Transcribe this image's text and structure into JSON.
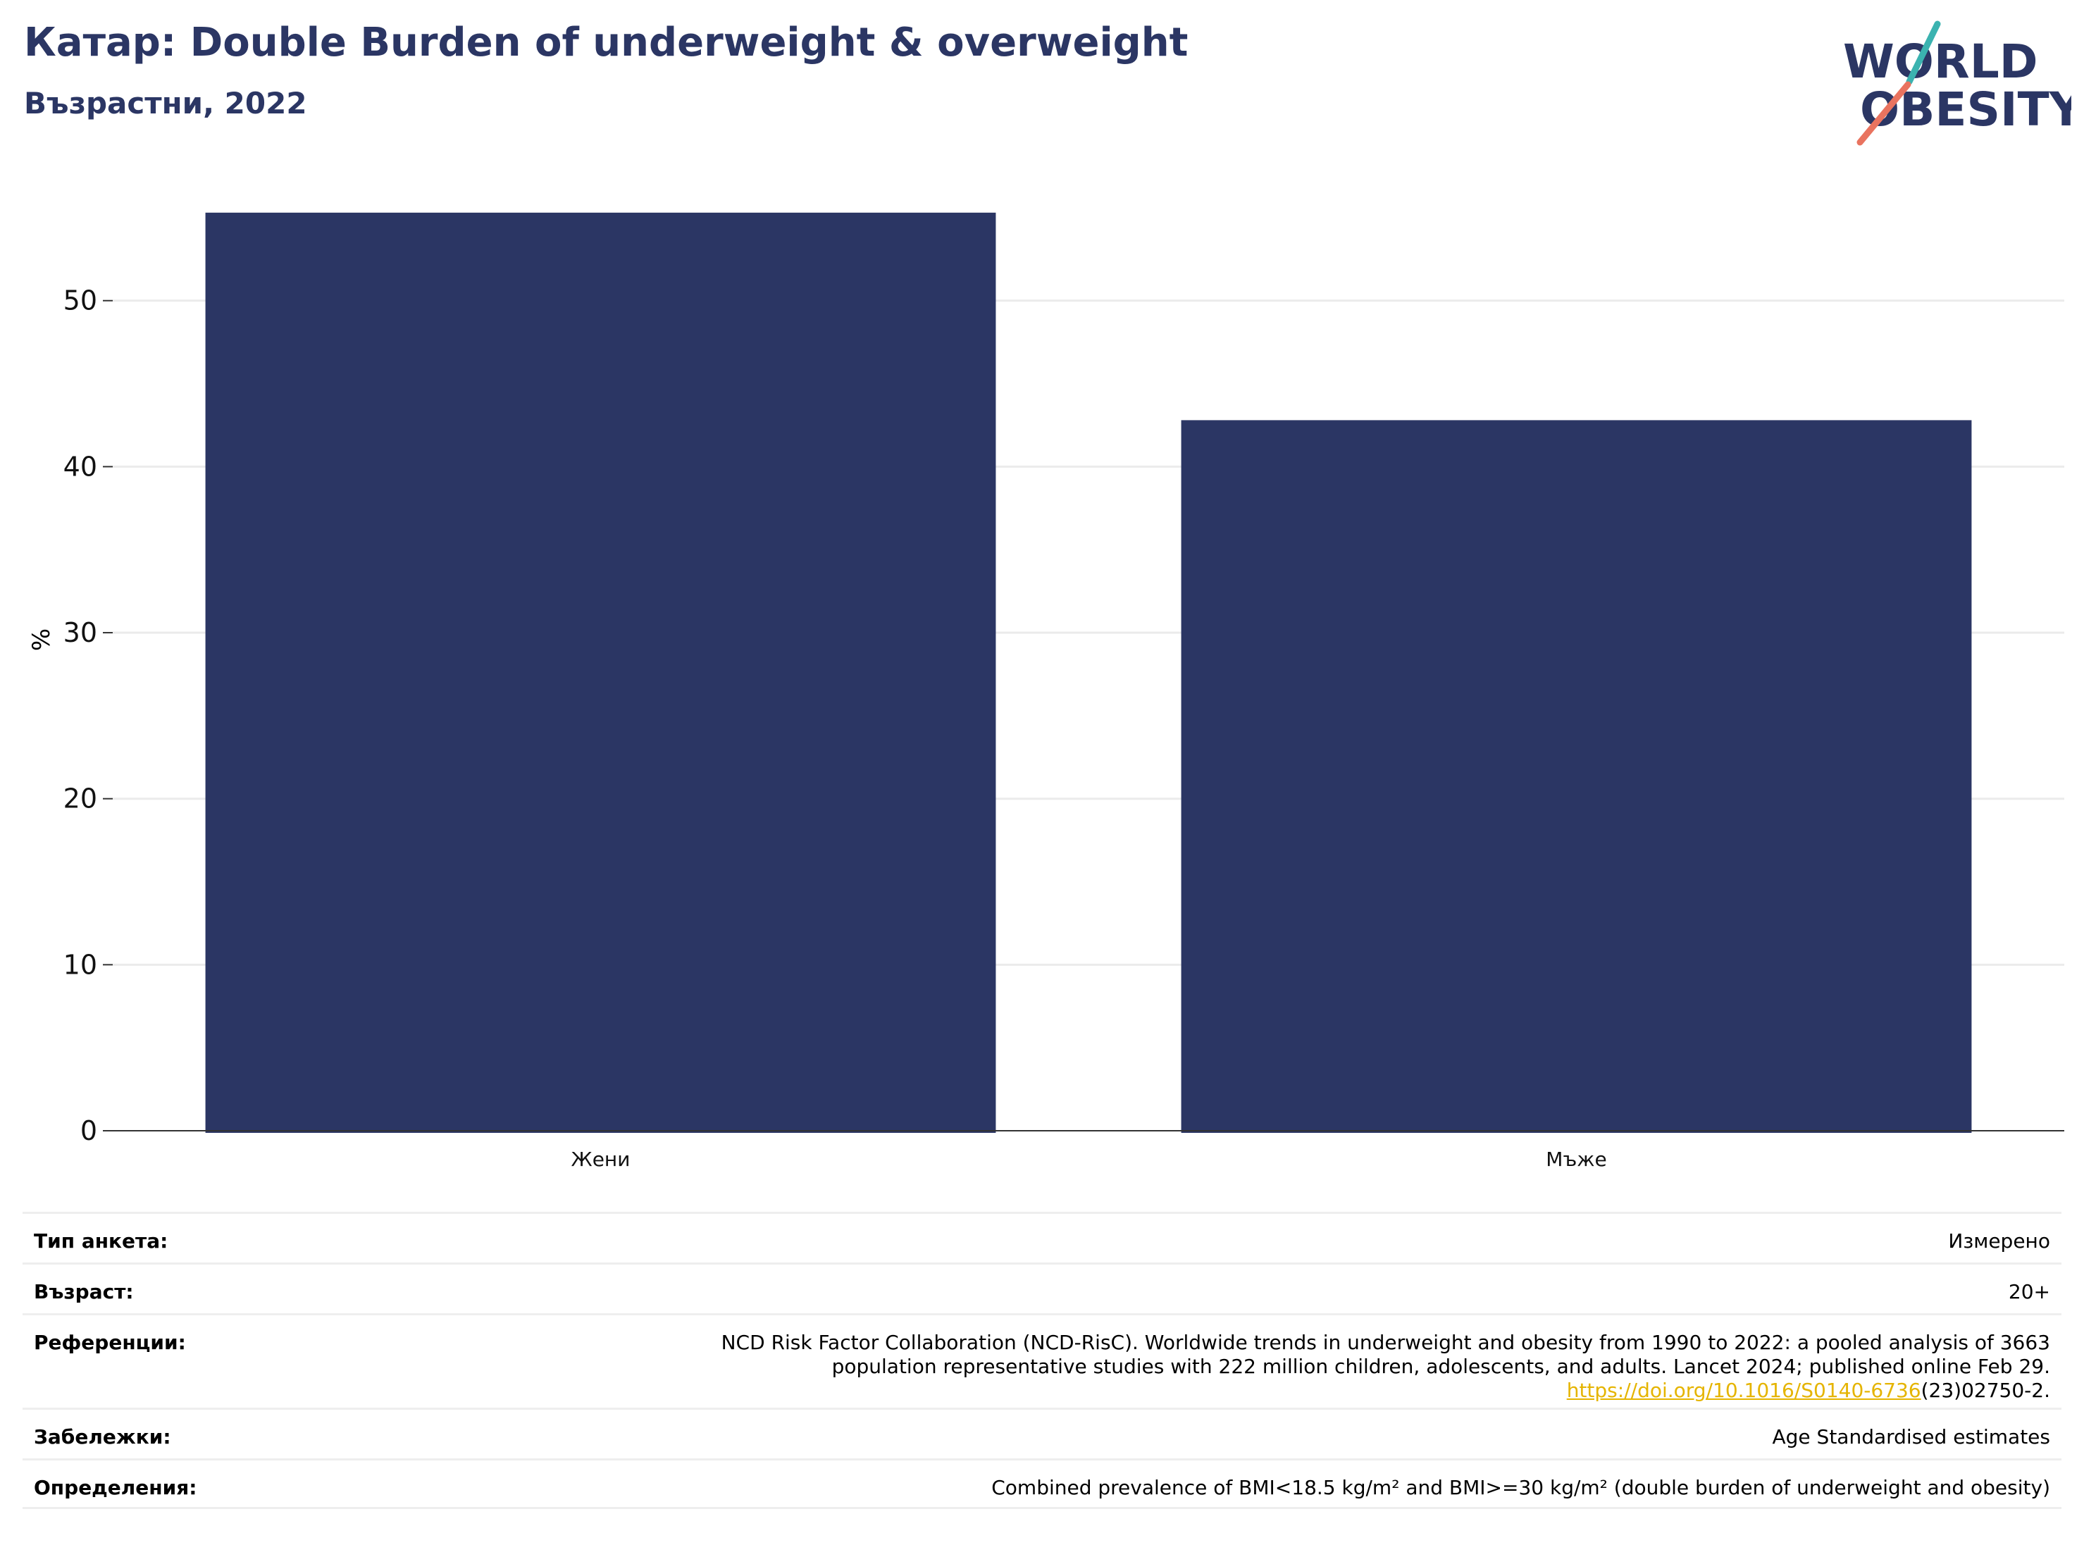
{
  "header": {
    "title": "Катар: Double Burden of underweight & overweight",
    "subtitle": "Възрастни, 2022",
    "logo": {
      "line1": "WORLD",
      "line2": "OBESITY"
    }
  },
  "colors": {
    "bar": "#2b3664",
    "title": "#2b3664",
    "link": "#e5b400",
    "logo_teal": "#3bb3b0",
    "logo_coral": "#e9735f"
  },
  "chart_data": {
    "type": "bar",
    "title": "",
    "xlabel": "",
    "ylabel": "%",
    "categories": [
      "Жени",
      "Мъже"
    ],
    "values": [
      55.3,
      42.8
    ],
    "ylim": [
      0,
      57.5
    ],
    "yticks": [
      0,
      10,
      20,
      30,
      40,
      50
    ],
    "grid": true,
    "legend": "none"
  },
  "meta": {
    "survey_type": {
      "label": "Тип анкета:",
      "value": "Измерено"
    },
    "age": {
      "label": "Възраст:",
      "value": "20+"
    },
    "references": {
      "label": "Референции:",
      "line1": "NCD Risk Factor Collaboration (NCD-RisC). Worldwide trends in underweight and obesity from 1990 to 2022: a pooled analysis of 3663",
      "line2": "population representative studies with 222 million children, adolescents, and adults. Lancet 2024; published online Feb 29.",
      "link": "https://doi.org/10.1016/S0140-6736",
      "link_suffix": "(23)02750-2."
    },
    "notes": {
      "label": "Забележки:",
      "value": "Age Standardised estimates"
    },
    "definitions": {
      "label": "Определения:",
      "value": "Combined prevalence of BMI<18.5 kg/m² and BMI>=30 kg/m² (double burden of underweight and obesity)"
    }
  }
}
